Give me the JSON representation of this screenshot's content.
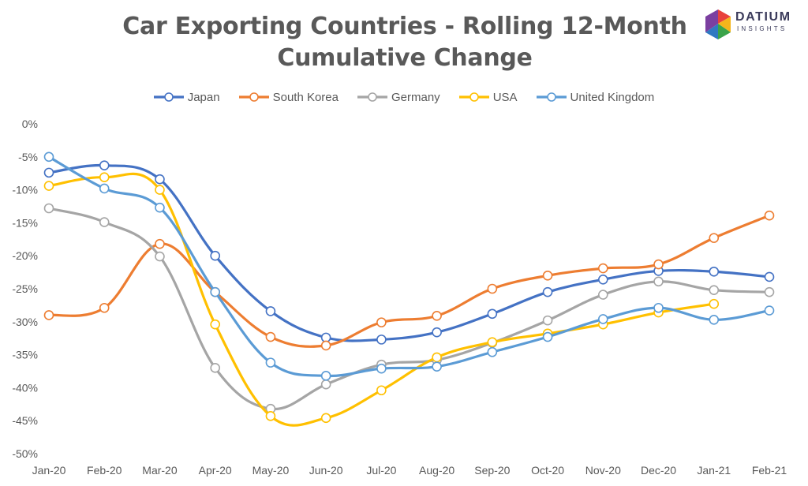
{
  "header": {
    "title_line1": "Car Exporting Countries - Rolling 12-Month",
    "title_line2": "Cumulative Change"
  },
  "logo": {
    "word": "DATIUM",
    "sub": "INSIGHTS",
    "colors": [
      "#e8413c",
      "#f4b51b",
      "#3aa34a",
      "#2f79c2",
      "#7b3fa0"
    ]
  },
  "chart_data": {
    "type": "line",
    "title": "Car Exporting Countries - Rolling 12-Month Cumulative Change",
    "xlabel": "",
    "ylabel": "",
    "ylim": [
      -50,
      0
    ],
    "yticks": [
      "0%",
      "-5%",
      "-10%",
      "-15%",
      "-20%",
      "-25%",
      "-30%",
      "-35%",
      "-40%",
      "-45%",
      "-50%"
    ],
    "ytick_values": [
      0,
      -5,
      -10,
      -15,
      -20,
      -25,
      -30,
      -35,
      -40,
      -45,
      -50
    ],
    "grid": false,
    "legend_position": "top",
    "categories": [
      "Jan-20",
      "Feb-20",
      "Mar-20",
      "Apr-20",
      "May-20",
      "Jun-20",
      "Jul-20",
      "Aug-20",
      "Sep-20",
      "Oct-20",
      "Nov-20",
      "Dec-20",
      "Jan-21",
      "Feb-21"
    ],
    "series": [
      {
        "name": "Japan",
        "color": "#4472c4",
        "values": [
          -7.4,
          -6.3,
          -8.4,
          -20.0,
          -28.4,
          -32.4,
          -32.7,
          -31.6,
          -28.8,
          -25.5,
          -23.6,
          -22.3,
          -22.4,
          -23.2
        ]
      },
      {
        "name": "South Korea",
        "color": "#ed7d31",
        "values": [
          -29.0,
          -27.9,
          -18.2,
          -25.5,
          -32.3,
          -33.6,
          -30.1,
          -29.1,
          -25.0,
          -23.0,
          -21.9,
          -21.3,
          -17.3,
          -13.9
        ]
      },
      {
        "name": "Germany",
        "color": "#a5a5a5",
        "values": [
          -12.8,
          -14.9,
          -20.1,
          -37.0,
          -43.2,
          -39.5,
          -36.5,
          -35.8,
          -33.2,
          -29.8,
          -25.9,
          -23.9,
          -25.2,
          -25.5
        ]
      },
      {
        "name": "USA",
        "color": "#ffc000",
        "values": [
          -9.4,
          -8.1,
          -10.0,
          -30.4,
          -44.3,
          -44.6,
          -40.4,
          -35.4,
          -33.1,
          -31.8,
          -30.4,
          -28.6,
          -27.3,
          null
        ]
      },
      {
        "name": "United Kingdom",
        "color": "#5b9bd5",
        "values": [
          -5.0,
          -9.8,
          -12.7,
          -25.5,
          -36.2,
          -38.2,
          -37.1,
          -36.8,
          -34.6,
          -32.3,
          -29.6,
          -27.9,
          -29.7,
          -28.3
        ]
      }
    ]
  }
}
